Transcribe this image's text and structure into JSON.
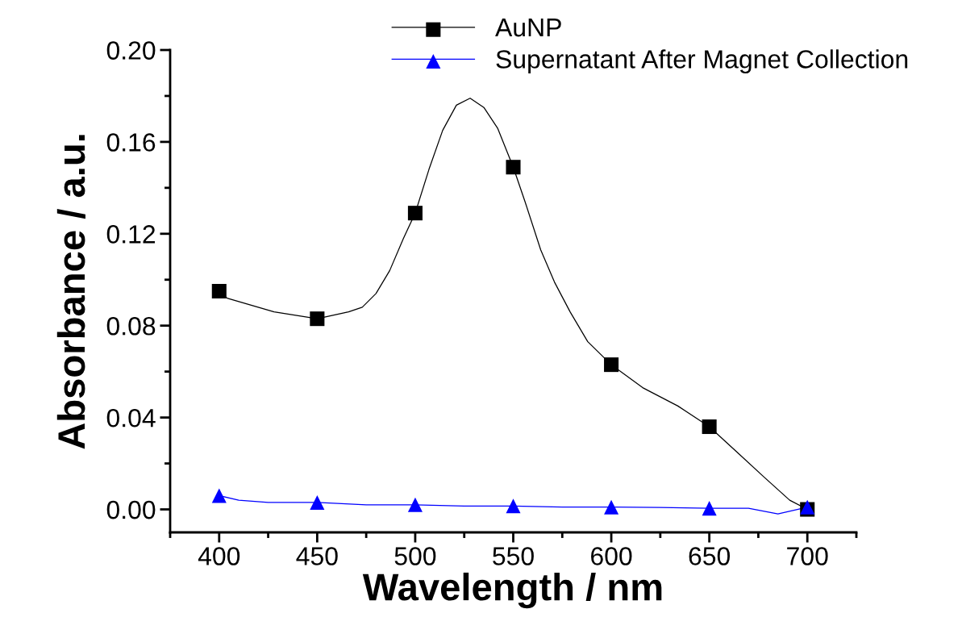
{
  "chart_data": {
    "type": "line",
    "xlabel": "Wavelength / nm",
    "ylabel": "Absorbance / a.u.",
    "xlim": [
      375,
      725
    ],
    "xticks": [
      400,
      450,
      500,
      550,
      600,
      650,
      700
    ],
    "ylim": [
      -0.01,
      0.2
    ],
    "yticks": [
      {
        "value": 0,
        "label": "0.00"
      },
      {
        "value": 0.04,
        "label": "0.04"
      },
      {
        "value": 0.08,
        "label": "0.08"
      },
      {
        "value": 0.12,
        "label": "0.12"
      },
      {
        "value": 0.16,
        "label": "0.16"
      },
      {
        "value": 0.2,
        "label": "0.20"
      }
    ],
    "legend": "top",
    "grid": false,
    "line_style": "solid",
    "series": [
      {
        "name": "AuNP",
        "color": "#000000",
        "x": [
          400,
          404,
          428,
          450,
          466,
          473,
          480,
          487,
          494,
          500,
          507,
          514,
          521,
          528,
          535,
          542,
          550,
          556,
          564,
          571,
          579,
          588,
          600,
          616,
          634,
          650,
          664,
          678,
          691,
          700
        ],
        "values": [
          0.095,
          0.092,
          0.086,
          0.083,
          0.086,
          0.088,
          0.094,
          0.104,
          0.118,
          0.129,
          0.148,
          0.165,
          0.176,
          0.179,
          0.175,
          0.166,
          0.149,
          0.134,
          0.113,
          0.099,
          0.086,
          0.073,
          0.063,
          0.053,
          0.045,
          0.036,
          0.025,
          0.014,
          0.004,
          0.0
        ]
      },
      {
        "type": "scatter",
        "color": "#000000",
        "marker": "square",
        "x": [
          400,
          450,
          500,
          550,
          600,
          650,
          700
        ],
        "values": [
          0.095,
          0.083,
          0.129,
          0.149,
          0.063,
          0.036,
          0.0
        ]
      },
      {
        "name": "Supernatant After Magnet Collection",
        "color": "#0000ff",
        "x": [
          400,
          410,
          425,
          450,
          475,
          500,
          525,
          550,
          575,
          600,
          625,
          650,
          670,
          685,
          700
        ],
        "values": [
          0.006,
          0.004,
          0.003,
          0.003,
          0.002,
          0.002,
          0.0015,
          0.0015,
          0.001,
          0.001,
          0.0008,
          0.0005,
          0.0005,
          -0.002,
          0.001
        ]
      },
      {
        "type": "scatter",
        "color": "#0000ff",
        "marker": "triangle",
        "x": [
          400,
          450,
          500,
          550,
          600,
          650,
          700
        ],
        "values": [
          0.006,
          0.003,
          0.002,
          0.0015,
          0.001,
          0.0005,
          0.001
        ]
      }
    ]
  }
}
